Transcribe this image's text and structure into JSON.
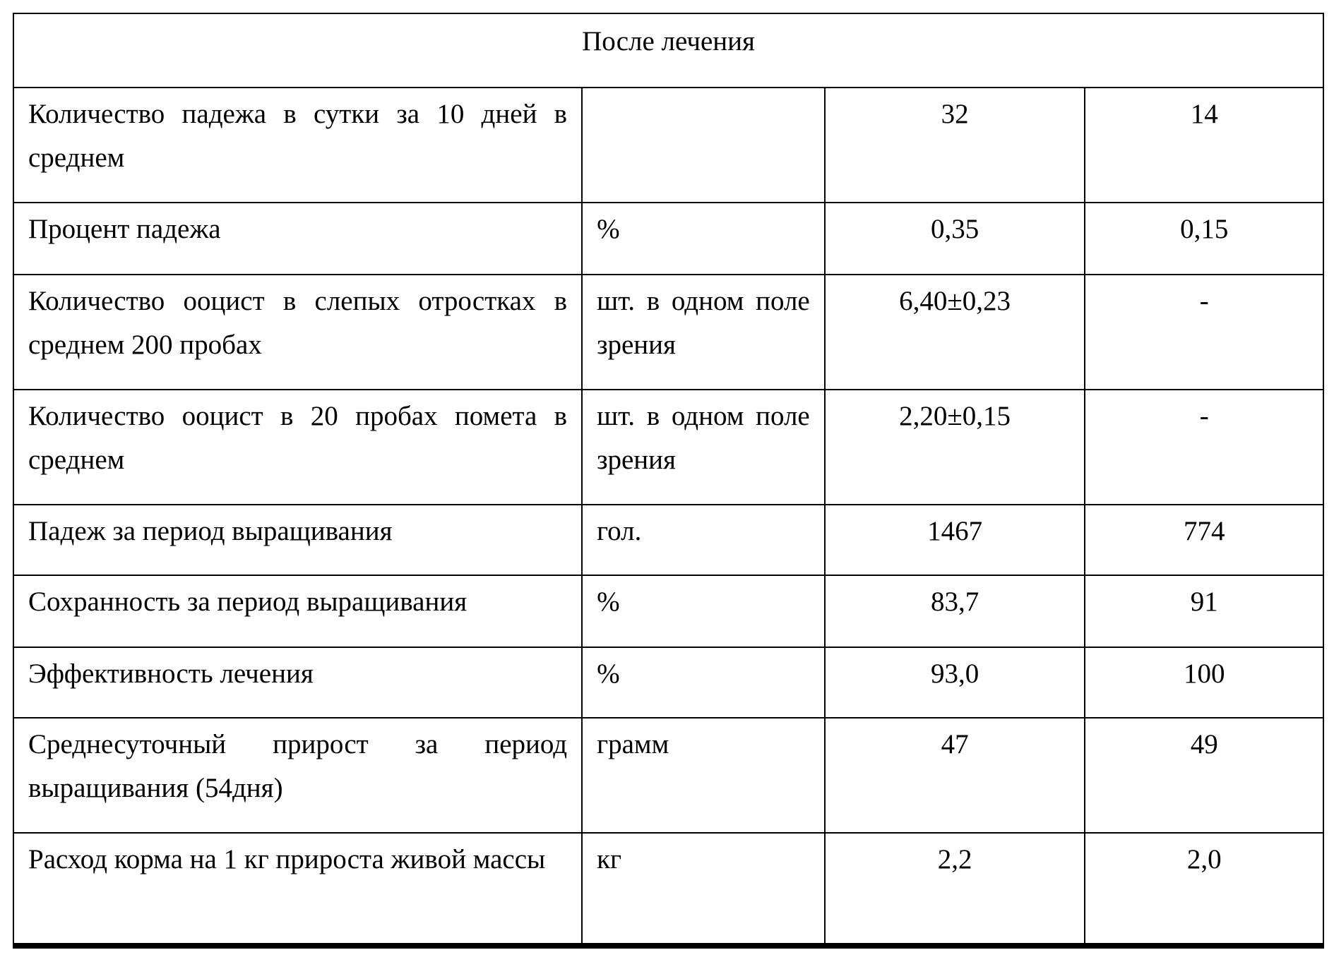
{
  "header": "После лечения",
  "rows": [
    {
      "label": "Количество падежа в сутки за 10 дней в среднем",
      "unit": "",
      "v1": "32",
      "v2": "14"
    },
    {
      "label": "Процент падежа",
      "unit": "%",
      "v1": "0,35",
      "v2": "0,15"
    },
    {
      "label": "Количество ооцист в слепых отростках в среднем 200 пробах",
      "unit": "шт. в одном поле зрения",
      "v1": "6,40±0,23",
      "v2": "-"
    },
    {
      "label": "Количество ооцист в 20 пробах помета в среднем",
      "unit": "шт. в одном поле зрения",
      "v1": "2,20±0,15",
      "v2": "-"
    },
    {
      "label": "Падеж за период выращивания",
      "unit": "гол.",
      "v1": "1467",
      "v2": "774"
    },
    {
      "label": "Сохранность за период выращивания",
      "unit": "%",
      "v1": "83,7",
      "v2": "91"
    },
    {
      "label": "Эффективность лечения",
      "unit": "%",
      "v1": "93,0",
      "v2": "100"
    },
    {
      "label": "Среднесуточный прирост за период выращивания (54дня)",
      "unit": "грамм",
      "v1": "47",
      "v2": "49"
    },
    {
      "label": "Расход корма на 1 кг прироста живой массы",
      "unit": "кг",
      "v1": "2,2",
      "v2": "2,0"
    }
  ]
}
